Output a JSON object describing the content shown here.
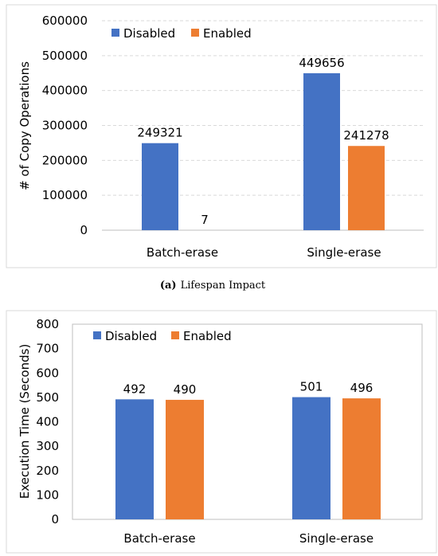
{
  "colors": {
    "disabled": "#4472C4",
    "enabled": "#ED7D31",
    "grid": "#d9d9d9",
    "border": "#d9d9d9"
  },
  "chart_data": [
    {
      "type": "bar",
      "ylabel": "# of Copy Operations",
      "xlabel": "",
      "categories": [
        "Batch-erase",
        "Single-erase"
      ],
      "series": [
        {
          "name": "Disabled",
          "values": [
            249321,
            449656
          ],
          "labels": [
            "249321",
            "449656"
          ]
        },
        {
          "name": "Enabled",
          "values": [
            7,
            241278
          ],
          "labels": [
            "7",
            "241278"
          ]
        }
      ],
      "ylim": [
        0,
        600000
      ],
      "yticks": [
        "0",
        "100000",
        "200000",
        "300000",
        "400000",
        "500000",
        "600000"
      ],
      "grid": true,
      "legend": "top-left",
      "caption_tag": "(a)",
      "caption_text": "Lifespan Impact"
    },
    {
      "type": "bar",
      "ylabel": "Execution Time (Seconds)",
      "xlabel": "",
      "categories": [
        "Batch-erase",
        "Single-erase"
      ],
      "series": [
        {
          "name": "Disabled",
          "values": [
            492,
            501
          ],
          "labels": [
            "492",
            "501"
          ]
        },
        {
          "name": "Enabled",
          "values": [
            490,
            496
          ],
          "labels": [
            "490",
            "496"
          ]
        }
      ],
      "ylim": [
        0,
        800
      ],
      "yticks": [
        "0",
        "100",
        "200",
        "300",
        "400",
        "500",
        "600",
        "700",
        "800"
      ],
      "grid": false,
      "legend": "top-left"
    }
  ]
}
